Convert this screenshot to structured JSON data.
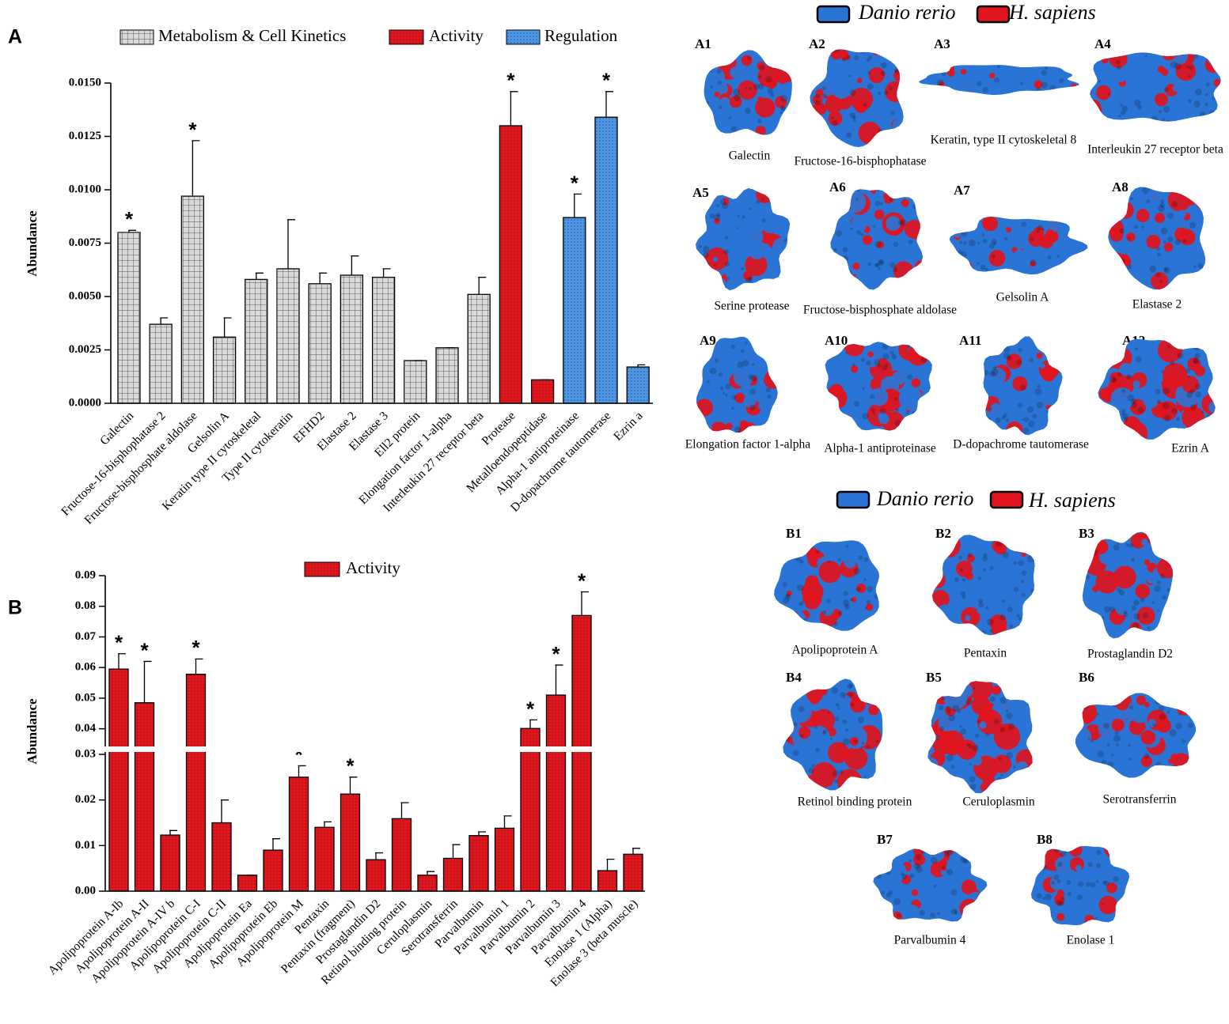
{
  "chart_data": [
    {
      "type": "bar",
      "panel": "A",
      "ylabel": "Abundance",
      "categories": [
        "Galectin",
        "Fructose-16-bisphophatase 2",
        "Fructose-bisphosphate aldolase",
        "Gelsolin A",
        "Keratin  type II cytoskeletal",
        "Type II cytokeratin",
        "EFHD2",
        "Elastase 2",
        "Elastase 3",
        "Ell2 protein",
        "Elongation factor 1-alpha",
        "Interleukin 27 receptor beta",
        "Protease",
        "Metalloendopeptidase",
        "Alpha-1 antiproteinase",
        "D-dopachrome tautomerase",
        "Ezrin a"
      ],
      "series": [
        {
          "name": "Metabolism & Cell Kinetics",
          "color": "#d9d9d9",
          "pattern": "grid",
          "values": [
            0.008,
            0.0037,
            0.0097,
            0.0031,
            0.0058,
            0.0063,
            0.0056,
            0.006,
            0.0059,
            0.002,
            0.0026,
            0.0051,
            null,
            null,
            null,
            null,
            null
          ],
          "errors": [
            0.0001,
            0.0003,
            0.0026,
            0.0009,
            0.0003,
            0.0023,
            0.0005,
            0.0009,
            0.0004,
            0,
            0,
            0.0008,
            null,
            null,
            null,
            null,
            null
          ]
        },
        {
          "name": "Activity",
          "color": "#e3151c",
          "pattern": "dots",
          "values": [
            null,
            null,
            null,
            null,
            null,
            null,
            null,
            null,
            null,
            null,
            null,
            null,
            0.013,
            0.0011,
            null,
            null,
            null
          ],
          "errors": [
            null,
            null,
            null,
            null,
            null,
            null,
            null,
            null,
            null,
            null,
            null,
            null,
            0.0016,
            0,
            null,
            null,
            null
          ]
        },
        {
          "name": "Regulation",
          "color": "#4d97e8",
          "pattern": "dots",
          "values": [
            null,
            null,
            null,
            null,
            null,
            null,
            null,
            null,
            null,
            null,
            null,
            null,
            null,
            null,
            0.0087,
            0.0134,
            0.0017
          ],
          "errors": [
            null,
            null,
            null,
            null,
            null,
            null,
            null,
            null,
            null,
            null,
            null,
            null,
            null,
            null,
            0.0011,
            0.0012,
            0.0001
          ]
        }
      ],
      "significance": [
        "*",
        null,
        "*",
        null,
        null,
        null,
        null,
        null,
        null,
        null,
        null,
        null,
        "*",
        null,
        "*",
        "*",
        null
      ],
      "ylim": [
        0,
        0.015
      ],
      "yticks": [
        {
          "value": 0,
          "label": "0.0000"
        },
        {
          "value": 0.0025,
          "label": "0.0025"
        },
        {
          "value": 0.005,
          "label": "0.0050"
        },
        {
          "value": 0.0075,
          "label": "0.0075"
        },
        {
          "value": 0.01,
          "label": "0.0100"
        },
        {
          "value": 0.0125,
          "label": "0.0125"
        },
        {
          "value": 0.015,
          "label": "0.0150"
        }
      ]
    },
    {
      "type": "bar",
      "panel": "B",
      "ylabel": "Abundance",
      "categories": [
        "Apolipoprotein A-Ib",
        "Apolipoprotein A-II",
        "Apolipoprotein A-IV b",
        "Apolipoprotein C-I",
        "Apolipoprotein C-II",
        "Apolipoprotein Ea",
        "Apolipoprotein Eb",
        "Apolipoprotein M",
        "Pentaxin",
        "Pentaxin (fragment)",
        "Prostaglandin D2",
        "Retinol binding protein",
        "Ceruloplasmin",
        "Serotransferrin",
        "Parvalbumin",
        "Parvalbumin 1",
        "Parvalbumin 2",
        "Parvalbumin 3",
        "Parvalbumin 4",
        "Enolase 1 (Alpha)",
        "Enolase 3 (beta muscle)"
      ],
      "series": [
        {
          "name": "Activity",
          "color": "#e3151c",
          "pattern": "dots",
          "values": [
            0.0595,
            0.0485,
            0.0123,
            0.0578,
            0.015,
            0.0035,
            0.009,
            0.025,
            0.014,
            0.0213,
            0.0069,
            0.0159,
            0.0035,
            0.0072,
            0.0122,
            0.0138,
            0.0401,
            0.051,
            0.077,
            0.0045,
            0.0081
          ],
          "errors": [
            0.005,
            0.0135,
            0.001,
            0.005,
            0.005,
            0,
            0.0025,
            0.0025,
            0.0012,
            0.0037,
            0.0015,
            0.0035,
            0.0008,
            0.003,
            0.0008,
            0.0027,
            0.0028,
            0.0098,
            0.0077,
            0.0025,
            0.0013
          ]
        }
      ],
      "significance": [
        "*",
        "*",
        null,
        "*",
        null,
        null,
        null,
        "*",
        null,
        "*",
        null,
        null,
        null,
        null,
        null,
        null,
        "*",
        "*",
        "*",
        null,
        null
      ],
      "ylim": [
        0,
        0.09
      ],
      "ybreak": [
        0.03,
        0.035
      ],
      "yticks": [
        {
          "value": 0,
          "label": "0.00"
        },
        0.01,
        0.02,
        0.03,
        0.04,
        0.05,
        0.06,
        0.07,
        0.08,
        0.09
      ]
    }
  ],
  "structures": [
    {
      "legend": [
        {
          "name": "Danio rerio",
          "color": "#2a74d6"
        },
        {
          "name": "H. sapiens",
          "color": "#e0141c"
        }
      ],
      "panels": [
        {
          "id": "A1",
          "label": "Galectin"
        },
        {
          "id": "A2",
          "label": "Fructose-16-bisphophatase"
        },
        {
          "id": "A3",
          "label": "Keratin, type II cytoskeletal 8"
        },
        {
          "id": "A4",
          "label": "Interleukin 27 receptor beta"
        },
        {
          "id": "A5",
          "label": "Serine protease"
        },
        {
          "id": "A6",
          "label": "Fructose-bisphosphate aldolase"
        },
        {
          "id": "A7",
          "label": "Gelsolin A"
        },
        {
          "id": "A8",
          "label": "Elastase 2"
        },
        {
          "id": "A9",
          "label": "Elongation factor 1-alpha"
        },
        {
          "id": "A10",
          "label": "Alpha-1 antiproteinase"
        },
        {
          "id": "A11",
          "label": "D-dopachrome tautomerase"
        },
        {
          "id": "A12",
          "label": "Ezrin A"
        }
      ]
    },
    {
      "legend": [
        {
          "name": "Danio rerio",
          "color": "#2a74d6"
        },
        {
          "name": "H. sapiens",
          "color": "#e0141c"
        }
      ],
      "panels": [
        {
          "id": "B1",
          "label": "Apolipoprotein A"
        },
        {
          "id": "B2",
          "label": "Pentaxin"
        },
        {
          "id": "B3",
          "label": "Prostaglandin D2"
        },
        {
          "id": "B4",
          "label": "Retinol binding protein"
        },
        {
          "id": "B5",
          "label": "Ceruloplasmin"
        },
        {
          "id": "B6",
          "label": "Serotransferrin"
        },
        {
          "id": "B7",
          "label": "Parvalbumin 4"
        },
        {
          "id": "B8",
          "label": "Enolase 1"
        }
      ]
    }
  ]
}
